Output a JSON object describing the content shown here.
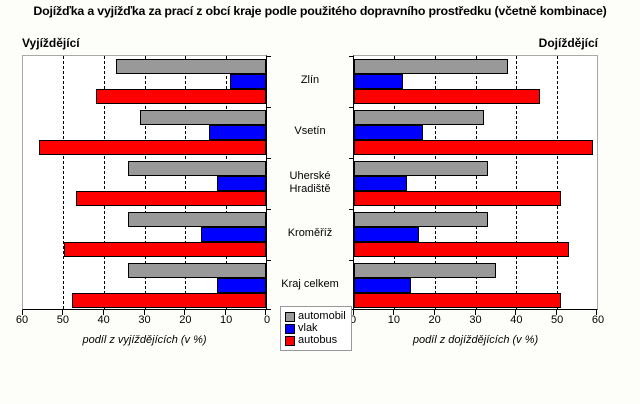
{
  "chart_data": {
    "type": "bar",
    "orientation": "horizontal",
    "title": "Dojížďka a vyjížďka za prací z obcí kraje podle použitého dopravního prostředku (včetně kombinace)",
    "categories": [
      "Zlín",
      "Vsetín",
      "Uherské Hradiště",
      "Kroměříž",
      "Kraj celkem"
    ],
    "legend": [
      {
        "name": "automobil",
        "color": "#999999"
      },
      {
        "name": "vlak",
        "color": "#0000ff"
      },
      {
        "name": "autobus",
        "color": "#ff0000"
      }
    ],
    "xlim": [
      0,
      60
    ],
    "grid": true,
    "panels": [
      {
        "header": "Vyjíždějící",
        "xlabel": "podíl z vyjíždějících (v %)",
        "direction": "right-to-left",
        "ticks": [
          60,
          50,
          40,
          30,
          20,
          10,
          0
        ],
        "series": [
          {
            "name": "automobil",
            "values": [
              37,
              31,
              34,
              34,
              34
            ]
          },
          {
            "name": "vlak",
            "values": [
              9,
              14,
              12,
              16,
              12
            ]
          },
          {
            "name": "autobus",
            "values": [
              42,
              56,
              47,
              50,
              48
            ]
          }
        ]
      },
      {
        "header": "Dojíždějící",
        "xlabel": "podíl z dojíždějících (v %)",
        "direction": "left-to-right",
        "ticks": [
          0,
          10,
          20,
          30,
          40,
          50,
          60
        ],
        "series": [
          {
            "name": "automobil",
            "values": [
              38,
              32,
              33,
              33,
              35
            ]
          },
          {
            "name": "vlak",
            "values": [
              12,
              17,
              13,
              16,
              14
            ]
          },
          {
            "name": "autobus",
            "values": [
              46,
              59,
              51,
              53,
              51
            ]
          }
        ]
      }
    ]
  }
}
